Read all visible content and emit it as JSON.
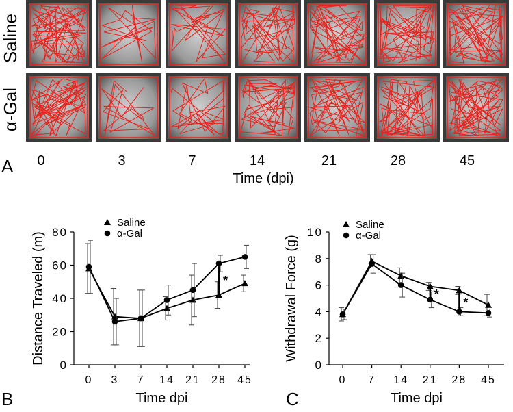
{
  "panel_a": {
    "letter": "A",
    "row_labels": [
      "Saline",
      "α-Gal"
    ],
    "time_labels": [
      "0",
      "3",
      "7",
      "14",
      "21",
      "28",
      "45"
    ],
    "xlabel": "Time (dpi)",
    "track_color": "#e8231e"
  },
  "chart_data": [
    {
      "id": "B",
      "letter": "B",
      "type": "line",
      "xlabel": "Time dpi",
      "ylabel": "Distance Traveled (m)",
      "categories": [
        "0",
        "3",
        "7",
        "14",
        "21",
        "28",
        "45"
      ],
      "ylim": [
        0,
        80
      ],
      "yticks": [
        "0",
        "20",
        "40",
        "60",
        "80"
      ],
      "series": [
        {
          "name": "Saline",
          "marker": "triangle",
          "values": [
            58,
            29,
            28,
            34,
            39,
            42,
            49
          ],
          "err": [
            15,
            17,
            17,
            7,
            15,
            8,
            5
          ]
        },
        {
          "name": "α-Gal",
          "marker": "circle",
          "values": [
            59,
            26,
            28,
            39,
            45,
            61,
            65
          ],
          "err": [
            16,
            14,
            17,
            9,
            16,
            5,
            7
          ]
        }
      ],
      "annotations": [
        {
          "text": "*",
          "between_index": 5
        }
      ]
    },
    {
      "id": "C",
      "letter": "C",
      "type": "line",
      "xlabel": "Time dpi",
      "ylabel": "Withdrawal Force (g)",
      "categories": [
        "0",
        "7",
        "14",
        "21",
        "28",
        "45"
      ],
      "ylim": [
        0,
        10
      ],
      "yticks": [
        "0",
        "2",
        "4",
        "6",
        "8",
        "10"
      ],
      "series": [
        {
          "name": "Saline",
          "marker": "triangle",
          "values": [
            3.8,
            7.8,
            6.7,
            5.9,
            5.6,
            4.5
          ],
          "err": [
            0.5,
            0.5,
            0.6,
            0.3,
            0.3,
            0.8
          ]
        },
        {
          "name": "α-Gal",
          "marker": "circle",
          "values": [
            3.8,
            7.6,
            6.0,
            4.9,
            4.0,
            3.9
          ],
          "err": [
            0.4,
            0.7,
            0.9,
            0.6,
            0.3,
            0.3
          ]
        }
      ],
      "annotations": [
        {
          "text": "*",
          "between_index": 3
        },
        {
          "text": "*",
          "between_index": 4
        }
      ]
    }
  ]
}
